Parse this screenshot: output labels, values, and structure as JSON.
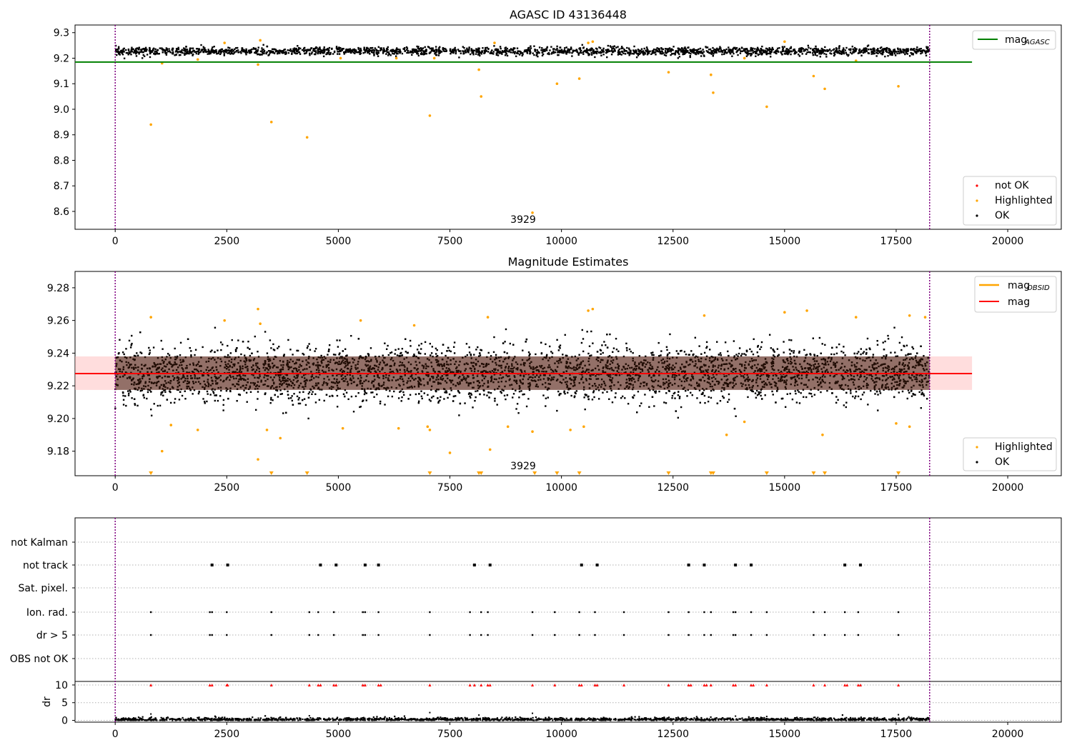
{
  "colors": {
    "ok": "#000000",
    "highlighted": "#ffa500",
    "not_ok": "#ff0000",
    "agasc_line": "#008000",
    "mag_line": "#ff0000",
    "mag_obsid": "#ffa500",
    "band": "#ffb3b3",
    "vline": "#800080",
    "grid": "#b0b0b0"
  },
  "chart_data": [
    {
      "type": "scatter",
      "title": "AGASC ID 43136448",
      "xlabel": "",
      "ylabel": "",
      "xlim": [
        -900,
        21200
      ],
      "ylim": [
        8.53,
        9.33
      ],
      "xticks": [
        0,
        2500,
        5000,
        7500,
        10000,
        12500,
        15000,
        17500,
        20000
      ],
      "yticks": [
        8.6,
        8.7,
        8.8,
        8.9,
        9.0,
        9.1,
        9.2,
        9.3
      ],
      "ytick_labels": [
        "8.6",
        "8.7",
        "8.8",
        "8.9",
        "9.0",
        "9.1",
        "9.2",
        "9.3"
      ],
      "vlines": [
        0,
        18250
      ],
      "hline": {
        "y": 9.185,
        "x_end": 19200
      },
      "ok_band": [
        9.21,
        9.245
      ],
      "ok_x_range": [
        0,
        18250
      ],
      "highlighted": [
        [
          800,
          8.94
        ],
        [
          1050,
          9.18
        ],
        [
          3200,
          9.175
        ],
        [
          3500,
          8.95
        ],
        [
          4300,
          8.89
        ],
        [
          7050,
          8.975
        ],
        [
          8150,
          9.155
        ],
        [
          8200,
          9.05
        ],
        [
          9900,
          9.1
        ],
        [
          10400,
          9.12
        ],
        [
          12400,
          9.145
        ],
        [
          13350,
          9.135
        ],
        [
          13400,
          9.065
        ],
        [
          14600,
          9.01
        ],
        [
          15650,
          9.13
        ],
        [
          15900,
          9.08
        ],
        [
          17550,
          9.09
        ],
        [
          9350,
          8.595
        ],
        [
          7150,
          9.2
        ],
        [
          3250,
          9.27
        ],
        [
          10700,
          9.265
        ],
        [
          10600,
          9.26
        ],
        [
          2450,
          9.26
        ],
        [
          15000,
          9.265
        ],
        [
          1850,
          9.195
        ],
        [
          5050,
          9.2
        ],
        [
          6300,
          9.2
        ],
        [
          14100,
          9.2
        ],
        [
          16600,
          9.19
        ],
        [
          8500,
          9.26
        ]
      ],
      "annotation": "3929",
      "legend_lines": [
        {
          "label": "mag",
          "sub": "AGASC"
        }
      ],
      "legend_points": [
        {
          "label": "not OK"
        },
        {
          "label": "Highlighted"
        },
        {
          "label": "OK"
        }
      ]
    },
    {
      "type": "scatter",
      "title": "Magnitude Estimates",
      "xlabel": "",
      "ylabel": "",
      "xlim": [
        -900,
        21200
      ],
      "ylim": [
        9.165,
        9.29
      ],
      "xticks": [
        0,
        2500,
        5000,
        7500,
        10000,
        12500,
        15000,
        17500,
        20000
      ],
      "yticks": [
        9.18,
        9.2,
        9.22,
        9.24,
        9.26,
        9.28
      ],
      "ytick_labels": [
        "9.18",
        "9.20",
        "9.22",
        "9.24",
        "9.26",
        "9.28"
      ],
      "vlines": [
        0,
        18250
      ],
      "mag_line": {
        "y": 9.2275,
        "x_end": 19200
      },
      "band": [
        9.2175,
        9.238
      ],
      "highlighted": [
        [
          800,
          9.262
        ],
        [
          3200,
          9.267
        ],
        [
          3250,
          9.258
        ],
        [
          2450,
          9.26
        ],
        [
          5500,
          9.26
        ],
        [
          6700,
          9.257
        ],
        [
          8350,
          9.262
        ],
        [
          10600,
          9.266
        ],
        [
          10700,
          9.267
        ],
        [
          13200,
          9.263
        ],
        [
          15000,
          9.265
        ],
        [
          15500,
          9.266
        ],
        [
          16600,
          9.262
        ],
        [
          17800,
          9.263
        ],
        [
          18150,
          9.262
        ],
        [
          1050,
          9.18
        ],
        [
          3200,
          9.175
        ],
        [
          7500,
          9.179
        ],
        [
          8400,
          9.181
        ],
        [
          1250,
          9.196
        ],
        [
          1850,
          9.193
        ],
        [
          3400,
          9.193
        ],
        [
          3700,
          9.188
        ],
        [
          5100,
          9.194
        ],
        [
          6350,
          9.194
        ],
        [
          7000,
          9.195
        ],
        [
          7050,
          9.193
        ],
        [
          8800,
          9.195
        ],
        [
          9350,
          9.192
        ],
        [
          10200,
          9.193
        ],
        [
          10500,
          9.195
        ],
        [
          13700,
          9.19
        ],
        [
          14100,
          9.198
        ],
        [
          15850,
          9.19
        ],
        [
          17500,
          9.197
        ],
        [
          17800,
          9.195
        ]
      ],
      "clipped_low": [
        800,
        3500,
        4300,
        7050,
        8150,
        8200,
        9400,
        9900,
        10400,
        12400,
        13350,
        13400,
        14600,
        15650,
        15900,
        17550
      ],
      "ok_band": [
        9.2,
        9.256
      ],
      "ok_x_range": [
        0,
        18250
      ],
      "annotation": "3929",
      "legend_lines": [
        {
          "label": "mag",
          "sub": "OBSID"
        },
        {
          "label": "mag",
          "sub": ""
        }
      ],
      "legend_points": [
        {
          "label": "Highlighted"
        },
        {
          "label": "OK"
        }
      ]
    },
    {
      "type": "scatter",
      "title": "",
      "xlabel": "",
      "ylabel": "",
      "xlim": [
        -900,
        21200
      ],
      "xticks": [
        0,
        2500,
        5000,
        7500,
        10000,
        12500,
        15000,
        17500,
        20000
      ],
      "vlines": [
        0,
        18250
      ],
      "flags": [
        "not Kalman",
        "not track",
        "Sat. pixel.",
        "Ion. rad.",
        "dr > 5",
        "OBS not OK"
      ],
      "flag_points": {
        "not track": [
          2170,
          2520,
          4600,
          4950,
          5600,
          5900,
          8050,
          8400,
          10450,
          10800,
          12850,
          13200,
          13900,
          14250,
          16350,
          16700
        ],
        "Ion. rad.": [
          800,
          2120,
          2170,
          2500,
          3500,
          4350,
          4550,
          4900,
          5550,
          5600,
          5900,
          7050,
          7950,
          8200,
          8350,
          9350,
          9850,
          10400,
          10750,
          11400,
          12400,
          12850,
          13200,
          13350,
          13850,
          13900,
          14250,
          14600,
          15650,
          15900,
          16350,
          16650,
          17550
        ],
        "dr > 5": [
          800,
          2120,
          2170,
          2500,
          3500,
          4350,
          4550,
          4900,
          5550,
          5600,
          5900,
          7050,
          7950,
          8200,
          8350,
          9350,
          9850,
          10400,
          10750,
          11400,
          12400,
          12850,
          13200,
          13350,
          13850,
          13900,
          14250,
          14600,
          15650,
          15900,
          16350,
          16650,
          17550
        ]
      },
      "dr": {
        "ylim": [
          -0.5,
          11
        ],
        "yticks": [
          0,
          5,
          10
        ],
        "ytick_labels": [
          "0",
          "5",
          "10"
        ],
        "ylabel": "dr",
        "red_points": [
          800,
          2120,
          2170,
          2500,
          2520,
          3500,
          4350,
          4550,
          4600,
          4900,
          4950,
          5550,
          5600,
          5900,
          5950,
          7050,
          7950,
          8050,
          8200,
          8350,
          8400,
          9350,
          9850,
          10400,
          10450,
          10750,
          10800,
          11400,
          12400,
          12850,
          12900,
          13200,
          13250,
          13350,
          13850,
          13900,
          14250,
          14300,
          14600,
          15650,
          15900,
          16350,
          16400,
          16650,
          16700,
          17550
        ],
        "high_black": [
          [
            800,
            1.8
          ],
          [
            7050,
            2.2
          ],
          [
            8150,
            1.5
          ],
          [
            9350,
            2.0
          ],
          [
            13900,
            1.2
          ],
          [
            17550,
            1.6
          ],
          [
            4350,
            1.3
          ],
          [
            14600,
            1.1
          ]
        ]
      }
    }
  ]
}
